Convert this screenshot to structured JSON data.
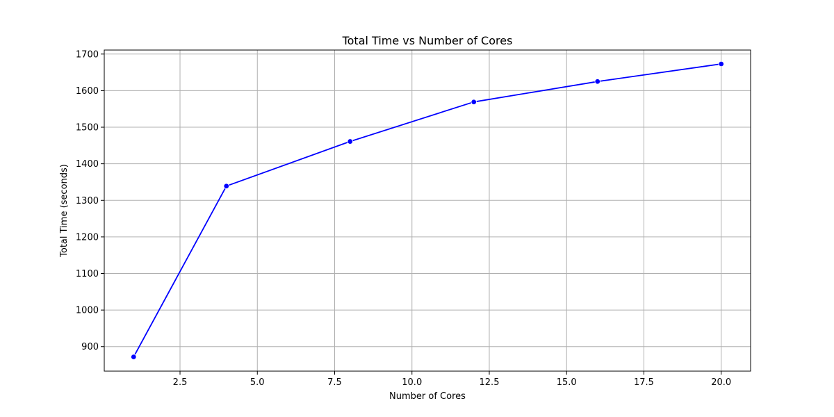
{
  "chart_data": {
    "type": "line",
    "title": "Total Time vs Number of Cores",
    "xlabel": "Number of Cores",
    "ylabel": "Total Time (seconds)",
    "xlim": [
      0.05,
      20.95
    ],
    "ylim": [
      833,
      1711
    ],
    "xticks": [
      2.5,
      5.0,
      7.5,
      10.0,
      12.5,
      15.0,
      17.5,
      20.0
    ],
    "xtick_labels": [
      "2.5",
      "5.0",
      "7.5",
      "10.0",
      "12.5",
      "15.0",
      "17.5",
      "20.0"
    ],
    "yticks": [
      900,
      1000,
      1100,
      1200,
      1300,
      1400,
      1500,
      1600,
      1700
    ],
    "ytick_labels": [
      "900",
      "1000",
      "1100",
      "1200",
      "1300",
      "1400",
      "1500",
      "1600",
      "1700"
    ],
    "grid": true,
    "series": [
      {
        "color": "#0000ff",
        "marker": "circle",
        "x": [
          1,
          4,
          8,
          12,
          16,
          20
        ],
        "y": [
          872,
          1339,
          1461,
          1569,
          1625,
          1673
        ]
      }
    ]
  }
}
